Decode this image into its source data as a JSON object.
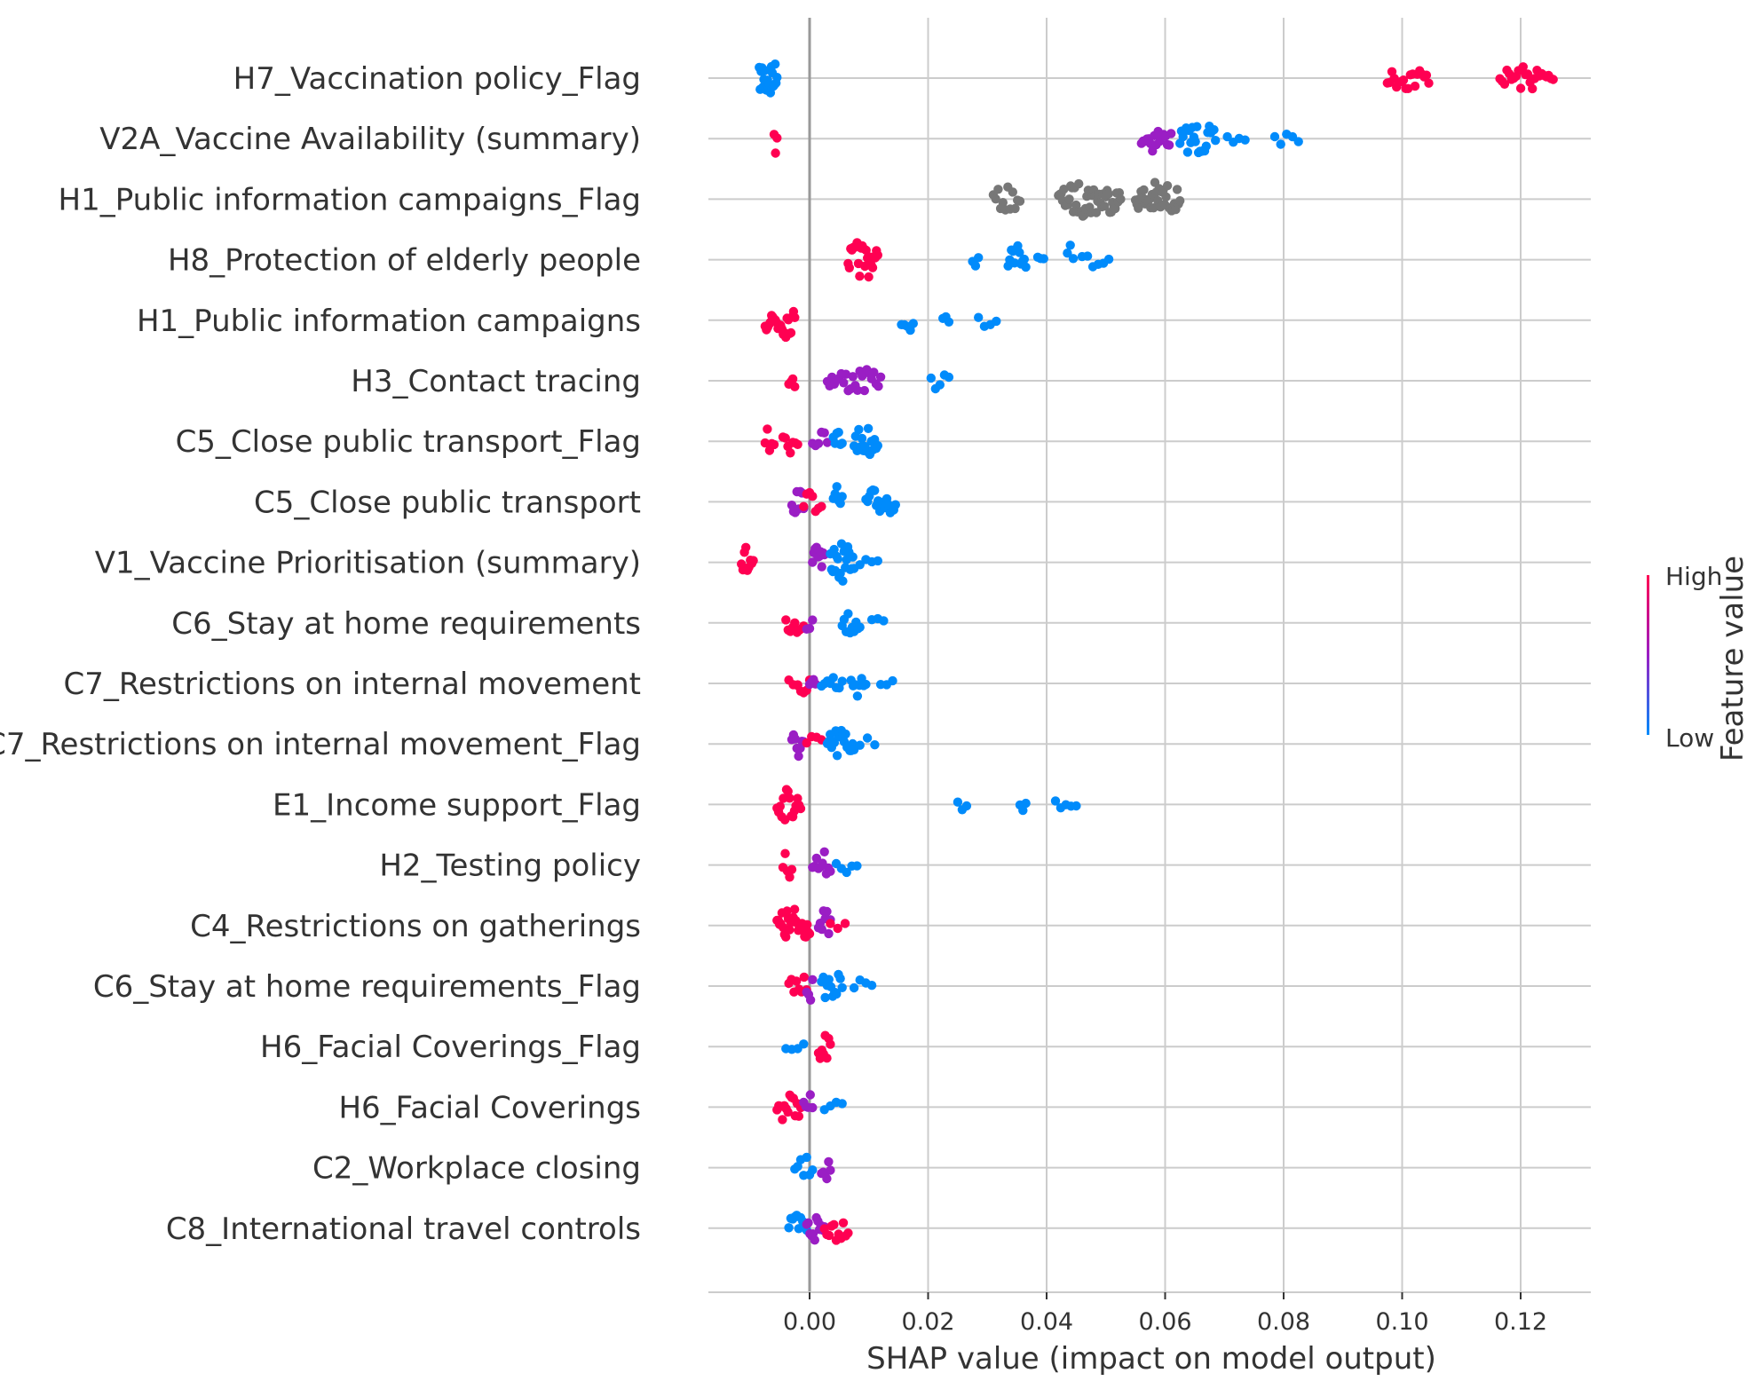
{
  "chart_data": {
    "type": "scatter",
    "subtype": "shap-beeswarm",
    "title": "",
    "xlabel": "SHAP value (impact on model output)",
    "ylabel": "",
    "xlim": [
      -0.017,
      0.132
    ],
    "x_ticks": [
      "0.00",
      "0.02",
      "0.04",
      "0.06",
      "0.08",
      "0.10",
      "0.12"
    ],
    "x_tick_values": [
      0.0,
      0.02,
      0.04,
      0.06,
      0.08,
      0.1,
      0.12
    ],
    "grid": true,
    "zero_line": 0.0,
    "colorbar": {
      "title": "Feature value",
      "high_label": "High",
      "low_label": "Low",
      "high_color": "#ff0052",
      "mid_color": "#9a1ec4",
      "low_color": "#008bfb",
      "missing_color": "#777777",
      "placement": "right"
    },
    "features": [
      {
        "name": "H7_Vaccination policy_Flag",
        "clusters": [
          {
            "from": -0.0085,
            "to": -0.0055,
            "color": "low",
            "width": 3
          },
          {
            "from": 0.0975,
            "to": 0.1045,
            "color": "high",
            "width": 1.2
          },
          {
            "from": 0.1165,
            "to": 0.1255,
            "color": "high",
            "width": 1.2
          }
        ]
      },
      {
        "name": "V2A_Vaccine Availability (summary)",
        "clusters": [
          {
            "from": -0.006,
            "to": -0.0055,
            "color": "high",
            "width": 2
          },
          {
            "from": 0.056,
            "to": 0.061,
            "color": "mid",
            "width": 1.5
          },
          {
            "from": 0.0625,
            "to": 0.0685,
            "color": "low",
            "width": 1.8
          },
          {
            "from": 0.0705,
            "to": 0.0735,
            "color": "low",
            "width": 0.4
          },
          {
            "from": 0.0785,
            "to": 0.0825,
            "color": "low",
            "width": 0.5
          }
        ]
      },
      {
        "name": "H1_Public information campaigns_Flag",
        "clusters": [
          {
            "from": 0.031,
            "to": 0.0355,
            "color": "missing",
            "width": 1.2
          },
          {
            "from": 0.042,
            "to": 0.0525,
            "color": "missing",
            "width": 2
          },
          {
            "from": 0.055,
            "to": 0.0625,
            "color": "missing",
            "width": 2
          }
        ]
      },
      {
        "name": "H8_Protection of elderly people",
        "clusters": [
          {
            "from": 0.0065,
            "to": 0.0115,
            "color": "high",
            "width": 2.2
          },
          {
            "from": 0.0275,
            "to": 0.0285,
            "color": "low",
            "width": 0.2
          },
          {
            "from": 0.0335,
            "to": 0.0365,
            "color": "low",
            "width": 1.8
          },
          {
            "from": 0.0385,
            "to": 0.0395,
            "color": "low",
            "width": 0.2
          },
          {
            "from": 0.0435,
            "to": 0.0445,
            "color": "low",
            "width": 1.5
          },
          {
            "from": 0.046,
            "to": 0.0505,
            "color": "low",
            "width": 0.5
          }
        ]
      },
      {
        "name": "H1_Public information campaigns",
        "clusters": [
          {
            "from": -0.0075,
            "to": -0.0025,
            "color": "high",
            "width": 2.2
          },
          {
            "from": 0.0155,
            "to": 0.0175,
            "color": "low",
            "width": 1.2
          },
          {
            "from": 0.0225,
            "to": 0.0235,
            "color": "low",
            "width": 0.2
          },
          {
            "from": 0.0285,
            "to": 0.0315,
            "color": "low",
            "width": 0.4
          }
        ]
      },
      {
        "name": "H3_Contact tracing",
        "clusters": [
          {
            "from": -0.0035,
            "to": -0.0025,
            "color": "high",
            "width": 2
          },
          {
            "from": 0.003,
            "to": 0.012,
            "color": "mid",
            "width": 1.2
          },
          {
            "from": 0.0205,
            "to": 0.0235,
            "color": "low",
            "width": 0.8
          }
        ]
      },
      {
        "name": "C5_Close public transport_Flag",
        "clusters": [
          {
            "from": -0.0075,
            "to": -0.006,
            "color": "high",
            "width": 1.5
          },
          {
            "from": -0.0045,
            "to": -0.002,
            "color": "high",
            "width": 1.2
          },
          {
            "from": 0.0005,
            "to": 0.003,
            "color": "mid",
            "width": 1
          },
          {
            "from": 0.004,
            "to": 0.0055,
            "color": "low",
            "width": 1.8
          },
          {
            "from": 0.0075,
            "to": 0.0115,
            "color": "low",
            "width": 1.8
          }
        ]
      },
      {
        "name": "C5_Close public transport",
        "clusters": [
          {
            "from": -0.003,
            "to": -0.001,
            "color": "mid",
            "width": 1.8
          },
          {
            "from": -0.001,
            "to": 0.002,
            "color": "high",
            "width": 1
          },
          {
            "from": 0.004,
            "to": 0.0055,
            "color": "low",
            "width": 1.8
          },
          {
            "from": 0.0095,
            "to": 0.0145,
            "color": "low",
            "width": 1.6
          }
        ]
      },
      {
        "name": "V1_Vaccine Prioritisation (summary)",
        "clusters": [
          {
            "from": -0.0115,
            "to": -0.0095,
            "color": "high",
            "width": 2
          },
          {
            "from": 0.0005,
            "to": 0.0025,
            "color": "mid",
            "width": 2.2
          },
          {
            "from": 0.0035,
            "to": 0.0075,
            "color": "low",
            "width": 2.2
          },
          {
            "from": 0.0085,
            "to": 0.0115,
            "color": "low",
            "width": 0.5
          }
        ]
      },
      {
        "name": "C6_Stay at home requirements",
        "clusters": [
          {
            "from": -0.004,
            "to": -0.001,
            "color": "high",
            "width": 1.3
          },
          {
            "from": -0.0005,
            "to": 0.0005,
            "color": "mid",
            "width": 1.5
          },
          {
            "from": 0.0055,
            "to": 0.0085,
            "color": "low",
            "width": 1.5
          },
          {
            "from": 0.0105,
            "to": 0.0125,
            "color": "low",
            "width": 0.4
          }
        ]
      },
      {
        "name": "C7_Restrictions on internal movement",
        "clusters": [
          {
            "from": -0.0035,
            "to": -0.002,
            "color": "high",
            "width": 0.4
          },
          {
            "from": -0.002,
            "to": 0.0,
            "color": "high",
            "width": 1.2
          },
          {
            "from": 0.0,
            "to": 0.001,
            "color": "mid",
            "width": 2
          },
          {
            "from": 0.002,
            "to": 0.0055,
            "color": "low",
            "width": 1
          },
          {
            "from": 0.007,
            "to": 0.0095,
            "color": "low",
            "width": 1.5
          },
          {
            "from": 0.012,
            "to": 0.014,
            "color": "low",
            "width": 0.5
          }
        ]
      },
      {
        "name": "C7_Restrictions on internal movement_Flag",
        "clusters": [
          {
            "from": -0.003,
            "to": -0.001,
            "color": "mid",
            "width": 1.8
          },
          {
            "from": -0.0005,
            "to": 0.002,
            "color": "high",
            "width": 0.8
          },
          {
            "from": 0.003,
            "to": 0.0075,
            "color": "low",
            "width": 2
          },
          {
            "from": 0.0085,
            "to": 0.011,
            "color": "low",
            "width": 0.4
          }
        ]
      },
      {
        "name": "E1_Income support_Flag",
        "clusters": [
          {
            "from": -0.0055,
            "to": -0.0015,
            "color": "high",
            "width": 1.8
          },
          {
            "from": 0.025,
            "to": 0.0265,
            "color": "low",
            "width": 0.5
          },
          {
            "from": 0.0355,
            "to": 0.0365,
            "color": "low",
            "width": 0.2
          },
          {
            "from": 0.0415,
            "to": 0.045,
            "color": "low",
            "width": 0.5
          }
        ]
      },
      {
        "name": "H2_Testing policy",
        "clusters": [
          {
            "from": -0.0045,
            "to": -0.003,
            "color": "high",
            "width": 1.5
          },
          {
            "from": 0.0005,
            "to": 0.0035,
            "color": "mid",
            "width": 1.5
          },
          {
            "from": 0.0045,
            "to": 0.008,
            "color": "low",
            "width": 0.5
          }
        ]
      },
      {
        "name": "C4_Restrictions on gatherings",
        "clusters": [
          {
            "from": -0.0055,
            "to": 0.0,
            "color": "high",
            "width": 2.2
          },
          {
            "from": 0.0015,
            "to": 0.0035,
            "color": "mid",
            "width": 1.8
          },
          {
            "from": 0.0035,
            "to": 0.006,
            "color": "high",
            "width": 0.5
          }
        ]
      },
      {
        "name": "C6_Stay at home requirements_Flag",
        "clusters": [
          {
            "from": -0.0035,
            "to": -0.0005,
            "color": "high",
            "width": 1.2
          },
          {
            "from": -0.0005,
            "to": 0.0005,
            "color": "mid",
            "width": 1.8
          },
          {
            "from": 0.002,
            "to": 0.0055,
            "color": "low",
            "width": 1.6
          },
          {
            "from": 0.0075,
            "to": 0.0105,
            "color": "low",
            "width": 0.4
          }
        ]
      },
      {
        "name": "H6_Facial Coverings_Flag",
        "clusters": [
          {
            "from": -0.004,
            "to": -0.001,
            "color": "low",
            "width": 0.5
          },
          {
            "from": 0.0015,
            "to": 0.0035,
            "color": "high",
            "width": 1.8
          }
        ]
      },
      {
        "name": "H6_Facial Coverings",
        "clusters": [
          {
            "from": -0.0055,
            "to": -0.0015,
            "color": "high",
            "width": 1.6
          },
          {
            "from": -0.001,
            "to": 0.0005,
            "color": "mid",
            "width": 1.5
          },
          {
            "from": 0.0025,
            "to": 0.0055,
            "color": "low",
            "width": 0.6
          }
        ]
      },
      {
        "name": "C2_Workplace closing",
        "clusters": [
          {
            "from": -0.0025,
            "to": 0.0005,
            "color": "low",
            "width": 1
          },
          {
            "from": 0.002,
            "to": 0.0035,
            "color": "mid",
            "width": 1.8
          }
        ]
      },
      {
        "name": "C8_International travel controls",
        "clusters": [
          {
            "from": -0.0035,
            "to": -0.0005,
            "color": "low",
            "width": 1.5
          },
          {
            "from": -0.0005,
            "to": 0.0025,
            "color": "mid",
            "width": 1.8
          },
          {
            "from": 0.0025,
            "to": 0.0065,
            "color": "high",
            "width": 1.2
          }
        ]
      }
    ]
  }
}
